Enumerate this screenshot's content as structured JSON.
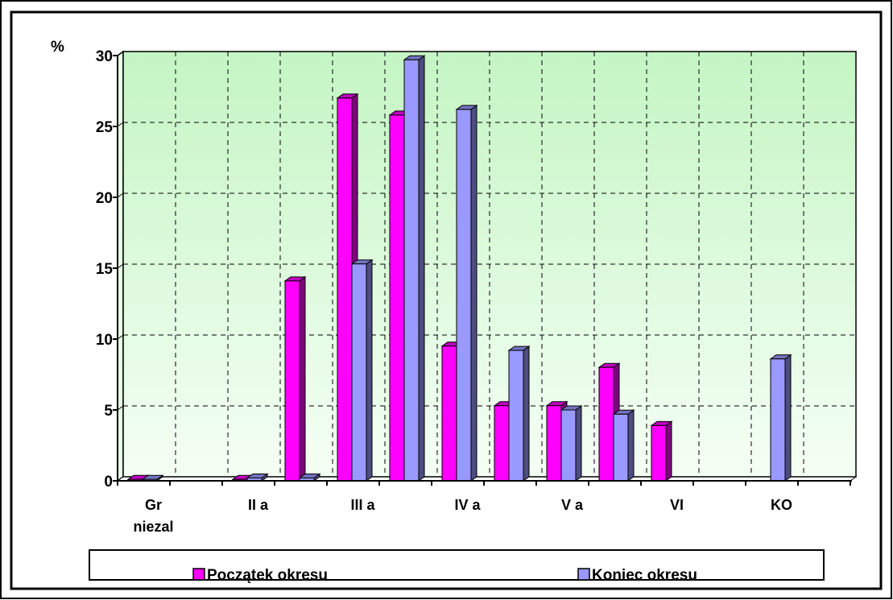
{
  "chart_data": {
    "type": "bar",
    "ylabel": "%",
    "ylim": [
      0,
      30
    ],
    "yticks": [
      0,
      5,
      10,
      15,
      20,
      25,
      30
    ],
    "grid": true,
    "legend_position": "bottom",
    "categories": [
      "Gr niezal",
      "",
      "II a",
      "",
      "III a",
      "",
      "IV a",
      "",
      "V a",
      "",
      "VI",
      "",
      "KO",
      ""
    ],
    "category_labels": [
      {
        "index": 0,
        "lines": [
          "Gr",
          "niezal"
        ]
      },
      {
        "index": 2,
        "lines": [
          "II a"
        ]
      },
      {
        "index": 4,
        "lines": [
          "III a"
        ]
      },
      {
        "index": 6,
        "lines": [
          "IV a"
        ]
      },
      {
        "index": 8,
        "lines": [
          "V a"
        ]
      },
      {
        "index": 10,
        "lines": [
          "VI"
        ]
      },
      {
        "index": 12,
        "lines": [
          "KO"
        ]
      }
    ],
    "series": [
      {
        "name": "Początek okresu",
        "color": "#ff00ff",
        "values": [
          0.1,
          0,
          0.1,
          14.1,
          27.0,
          25.8,
          9.5,
          5.3,
          5.3,
          8.0,
          3.9,
          0,
          0,
          0
        ]
      },
      {
        "name": "Koniec okresu",
        "color": "#9999ff",
        "values": [
          0.1,
          0,
          0.2,
          0.2,
          15.3,
          29.7,
          26.2,
          9.2,
          5.0,
          4.7,
          0,
          0,
          8.6,
          0
        ]
      }
    ]
  },
  "colors": {
    "plot_gradient_top": "#c4f5c4",
    "plot_gradient_bottom": "#f5fff5",
    "grid": "#000000",
    "frame": "#000000"
  }
}
